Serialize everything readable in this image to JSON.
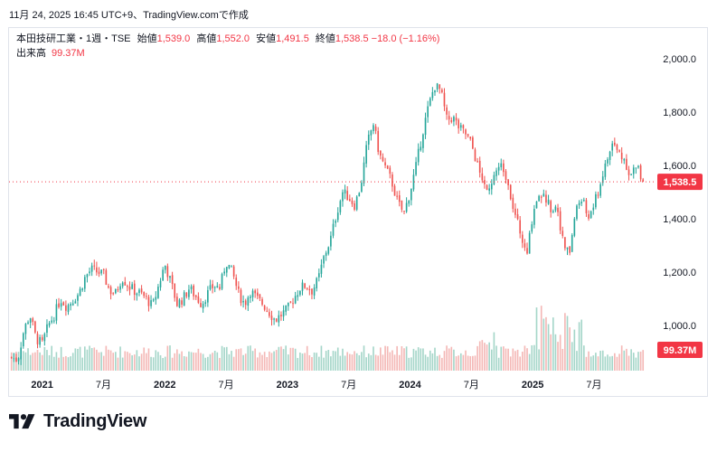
{
  "header": {
    "capture_text": "11月 24, 2025 16:45 UTC+9、TradingView.comで作成"
  },
  "legend": {
    "symbol": "本田技研工業・1週・TSE",
    "open_label": "始値",
    "open": "1,539.0",
    "high_label": "高値",
    "high": "1,552.0",
    "low_label": "安値",
    "low": "1,491.5",
    "close_label": "終値",
    "close": "1,538.5",
    "change": "−18.0 (−1.16%)",
    "volume_label": "出来高",
    "volume": "99.37M"
  },
  "price_tag": "1,538.5",
  "volume_tag": "99.37M",
  "brand": {
    "name": "TradingView"
  },
  "colors": {
    "up": "#26a69a",
    "down": "#ef5350",
    "up_vol": "#a5d6c9",
    "down_vol": "#f4b8b6",
    "price_line": "#f23645"
  },
  "chart_data": {
    "type": "candlestick",
    "timeframe": "1週",
    "y_axis": {
      "ticks": [
        1000,
        1200,
        1400,
        1600,
        1800,
        2000
      ],
      "tick_labels": [
        "1,000.0",
        "1,200.0",
        "1,400.0",
        "1,600.0",
        "1,800.0",
        "2,000.0"
      ],
      "ylim": [
        830,
        2085
      ]
    },
    "x_axis": {
      "ticks": [
        {
          "label": "2021",
          "year_bold": true,
          "t": 2021.0
        },
        {
          "label": "7月",
          "year_bold": false,
          "t": 2021.5
        },
        {
          "label": "2022",
          "year_bold": true,
          "t": 2022.0
        },
        {
          "label": "7月",
          "year_bold": false,
          "t": 2022.5
        },
        {
          "label": "2023",
          "year_bold": true,
          "t": 2023.0
        },
        {
          "label": "7月",
          "year_bold": false,
          "t": 2023.5
        },
        {
          "label": "2024",
          "year_bold": true,
          "t": 2024.0
        },
        {
          "label": "7月",
          "year_bold": false,
          "t": 2024.5
        },
        {
          "label": "2025",
          "year_bold": true,
          "t": 2025.0
        },
        {
          "label": "7月",
          "year_bold": false,
          "t": 2025.5
        }
      ],
      "range": [
        2020.73,
        2025.95
      ]
    },
    "last_close": 1538.5,
    "price_path": [
      [
        2020.75,
        880
      ],
      [
        2020.8,
        870
      ],
      [
        2020.85,
        980
      ],
      [
        2020.9,
        1040
      ],
      [
        2020.95,
        950
      ],
      [
        2021.0,
        930
      ],
      [
        2021.05,
        1000
      ],
      [
        2021.1,
        1040
      ],
      [
        2021.15,
        1100
      ],
      [
        2021.2,
        1070
      ],
      [
        2021.3,
        1120
      ],
      [
        2021.35,
        1180
      ],
      [
        2021.4,
        1210
      ],
      [
        2021.45,
        1200
      ],
      [
        2021.5,
        1190
      ],
      [
        2021.55,
        1130
      ],
      [
        2021.6,
        1120
      ],
      [
        2021.65,
        1180
      ],
      [
        2021.7,
        1150
      ],
      [
        2021.75,
        1130
      ],
      [
        2021.8,
        1120
      ],
      [
        2021.85,
        1100
      ],
      [
        2021.9,
        1070
      ],
      [
        2021.95,
        1150
      ],
      [
        2022.0,
        1230
      ],
      [
        2022.05,
        1160
      ],
      [
        2022.1,
        1080
      ],
      [
        2022.15,
        1100
      ],
      [
        2022.2,
        1140
      ],
      [
        2022.25,
        1110
      ],
      [
        2022.3,
        1080
      ],
      [
        2022.35,
        1120
      ],
      [
        2022.4,
        1150
      ],
      [
        2022.45,
        1140
      ],
      [
        2022.5,
        1240
      ],
      [
        2022.55,
        1200
      ],
      [
        2022.6,
        1120
      ],
      [
        2022.65,
        1080
      ],
      [
        2022.7,
        1130
      ],
      [
        2022.75,
        1100
      ],
      [
        2022.8,
        1080
      ],
      [
        2022.85,
        1050
      ],
      [
        2022.9,
        1020
      ],
      [
        2022.95,
        1040
      ],
      [
        2023.0,
        1060
      ],
      [
        2023.05,
        1100
      ],
      [
        2023.1,
        1140
      ],
      [
        2023.15,
        1150
      ],
      [
        2023.2,
        1130
      ],
      [
        2023.25,
        1170
      ],
      [
        2023.3,
        1260
      ],
      [
        2023.35,
        1320
      ],
      [
        2023.4,
        1420
      ],
      [
        2023.45,
        1500
      ],
      [
        2023.5,
        1480
      ],
      [
        2023.55,
        1450
      ],
      [
        2023.6,
        1530
      ],
      [
        2023.65,
        1680
      ],
      [
        2023.7,
        1760
      ],
      [
        2023.75,
        1640
      ],
      [
        2023.8,
        1590
      ],
      [
        2023.85,
        1540
      ],
      [
        2023.9,
        1460
      ],
      [
        2023.95,
        1420
      ],
      [
        2024.0,
        1500
      ],
      [
        2024.05,
        1600
      ],
      [
        2024.1,
        1720
      ],
      [
        2024.15,
        1820
      ],
      [
        2024.2,
        1900
      ],
      [
        2024.25,
        1880
      ],
      [
        2024.3,
        1770
      ],
      [
        2024.35,
        1780
      ],
      [
        2024.4,
        1740
      ],
      [
        2024.45,
        1720
      ],
      [
        2024.5,
        1680
      ],
      [
        2024.55,
        1600
      ],
      [
        2024.6,
        1520
      ],
      [
        2024.65,
        1530
      ],
      [
        2024.7,
        1580
      ],
      [
        2024.75,
        1600
      ],
      [
        2024.8,
        1540
      ],
      [
        2024.85,
        1420
      ],
      [
        2024.9,
        1350
      ],
      [
        2024.95,
        1250
      ],
      [
        2025.0,
        1420
      ],
      [
        2025.05,
        1500
      ],
      [
        2025.1,
        1480
      ],
      [
        2025.15,
        1440
      ],
      [
        2025.2,
        1450
      ],
      [
        2025.25,
        1300
      ],
      [
        2025.3,
        1270
      ],
      [
        2025.35,
        1430
      ],
      [
        2025.4,
        1480
      ],
      [
        2025.45,
        1400
      ],
      [
        2025.5,
        1450
      ],
      [
        2025.55,
        1530
      ],
      [
        2025.6,
        1610
      ],
      [
        2025.65,
        1680
      ],
      [
        2025.7,
        1650
      ],
      [
        2025.75,
        1620
      ],
      [
        2025.8,
        1560
      ],
      [
        2025.85,
        1600
      ],
      [
        2025.9,
        1538.5
      ]
    ]
  }
}
